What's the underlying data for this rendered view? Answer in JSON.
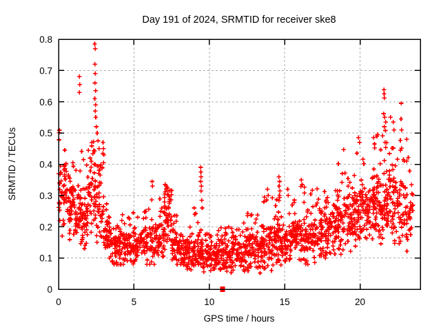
{
  "chart_data": {
    "type": "scatter",
    "title": "Day 191 of 2024, SRMTID for receiver ske8",
    "xlabel": "GPS time / hours",
    "ylabel": "SRMTID / TECUs",
    "xlim": [
      0,
      24
    ],
    "ylim": [
      0,
      0.8
    ],
    "xtick_values": [
      0,
      5,
      10,
      15,
      20
    ],
    "xtick_labels": [
      "0",
      "5",
      "10",
      "15",
      "20"
    ],
    "ytick_values": [
      0,
      0.1,
      0.2,
      0.3,
      0.4,
      0.5,
      0.6,
      0.7,
      0.8
    ],
    "ytick_labels": [
      "0",
      "0.1",
      "0.2",
      "0.3",
      "0.4",
      "0.5",
      "0.6",
      "0.7",
      "0.8"
    ],
    "grid": true,
    "legend": "none",
    "marker": "plus",
    "marker_color": "#ff0000",
    "grid_color": "#ababab",
    "border_color": "#000000",
    "approx_point_count": 2000,
    "seed": 191,
    "density_bands_format": [
      "hour_start",
      "hour_end",
      "count",
      "min",
      "max",
      "center",
      "spread"
    ],
    "density_bands": [
      [
        0.0,
        0.5,
        46,
        0.17,
        0.51,
        0.31,
        0.1
      ],
      [
        0.5,
        1.0,
        46,
        0.15,
        0.42,
        0.27,
        0.08
      ],
      [
        1.0,
        1.5,
        46,
        0.14,
        0.44,
        0.25,
        0.08
      ],
      [
        1.5,
        2.0,
        50,
        0.13,
        0.46,
        0.24,
        0.08
      ],
      [
        2.0,
        2.5,
        48,
        0.18,
        0.52,
        0.3,
        0.1
      ],
      [
        2.5,
        3.0,
        44,
        0.15,
        0.48,
        0.27,
        0.09
      ],
      [
        3.0,
        3.5,
        40,
        0.1,
        0.32,
        0.18,
        0.06
      ],
      [
        3.5,
        4.0,
        40,
        0.08,
        0.28,
        0.15,
        0.05
      ],
      [
        4.0,
        4.5,
        40,
        0.08,
        0.26,
        0.14,
        0.05
      ],
      [
        4.5,
        5.0,
        40,
        0.08,
        0.25,
        0.14,
        0.04
      ],
      [
        5.0,
        5.5,
        40,
        0.08,
        0.24,
        0.14,
        0.04
      ],
      [
        5.5,
        6.0,
        40,
        0.08,
        0.26,
        0.15,
        0.05
      ],
      [
        6.0,
        6.5,
        40,
        0.08,
        0.3,
        0.15,
        0.05
      ],
      [
        6.5,
        7.0,
        42,
        0.1,
        0.3,
        0.17,
        0.05
      ],
      [
        7.0,
        7.5,
        48,
        0.12,
        0.34,
        0.24,
        0.06
      ],
      [
        7.5,
        8.0,
        42,
        0.08,
        0.25,
        0.15,
        0.05
      ],
      [
        8.0,
        8.5,
        40,
        0.06,
        0.2,
        0.12,
        0.04
      ],
      [
        8.5,
        9.0,
        40,
        0.06,
        0.22,
        0.12,
        0.04
      ],
      [
        9.0,
        9.5,
        42,
        0.06,
        0.25,
        0.13,
        0.05
      ],
      [
        9.5,
        10.0,
        40,
        0.05,
        0.22,
        0.12,
        0.04
      ],
      [
        10.0,
        10.5,
        40,
        0.05,
        0.2,
        0.11,
        0.04
      ],
      [
        10.5,
        11.0,
        40,
        0.04,
        0.2,
        0.11,
        0.04
      ],
      [
        11.0,
        11.5,
        40,
        0.04,
        0.2,
        0.11,
        0.04
      ],
      [
        11.5,
        12.0,
        42,
        0.04,
        0.22,
        0.12,
        0.04
      ],
      [
        12.0,
        12.5,
        42,
        0.05,
        0.22,
        0.12,
        0.04
      ],
      [
        12.5,
        13.0,
        42,
        0.05,
        0.25,
        0.13,
        0.04
      ],
      [
        13.0,
        13.5,
        42,
        0.05,
        0.26,
        0.13,
        0.05
      ],
      [
        13.5,
        14.0,
        42,
        0.06,
        0.3,
        0.14,
        0.05
      ],
      [
        14.0,
        14.5,
        42,
        0.06,
        0.3,
        0.15,
        0.05
      ],
      [
        14.5,
        15.0,
        44,
        0.07,
        0.3,
        0.16,
        0.05
      ],
      [
        15.0,
        15.5,
        42,
        0.07,
        0.3,
        0.16,
        0.05
      ],
      [
        15.5,
        16.0,
        42,
        0.08,
        0.33,
        0.17,
        0.05
      ],
      [
        16.0,
        16.5,
        42,
        0.08,
        0.35,
        0.18,
        0.06
      ],
      [
        16.5,
        17.0,
        42,
        0.08,
        0.32,
        0.17,
        0.06
      ],
      [
        17.0,
        17.5,
        42,
        0.1,
        0.33,
        0.18,
        0.06
      ],
      [
        17.5,
        18.0,
        42,
        0.1,
        0.35,
        0.19,
        0.06
      ],
      [
        18.0,
        18.5,
        44,
        0.1,
        0.38,
        0.2,
        0.07
      ],
      [
        18.5,
        19.0,
        44,
        0.1,
        0.42,
        0.22,
        0.07
      ],
      [
        19.0,
        19.5,
        44,
        0.1,
        0.42,
        0.23,
        0.07
      ],
      [
        19.5,
        20.0,
        44,
        0.12,
        0.47,
        0.25,
        0.08
      ],
      [
        20.0,
        20.5,
        46,
        0.12,
        0.45,
        0.26,
        0.08
      ],
      [
        20.5,
        21.0,
        48,
        0.13,
        0.47,
        0.27,
        0.08
      ],
      [
        21.0,
        21.5,
        48,
        0.13,
        0.5,
        0.28,
        0.08
      ],
      [
        21.5,
        22.0,
        48,
        0.13,
        0.52,
        0.28,
        0.09
      ],
      [
        22.0,
        22.5,
        44,
        0.12,
        0.48,
        0.26,
        0.09
      ],
      [
        22.5,
        23.0,
        40,
        0.12,
        0.5,
        0.27,
        0.09
      ],
      [
        23.0,
        23.45,
        30,
        0.12,
        0.45,
        0.25,
        0.08
      ],
      [
        23.45,
        23.55,
        4,
        0.2,
        0.35,
        0.27,
        0.05
      ]
    ],
    "feature_points": [
      [
        1.38,
        0.68
      ],
      [
        1.41,
        0.655
      ],
      [
        1.39,
        0.63
      ],
      [
        2.4,
        0.785
      ],
      [
        2.43,
        0.77
      ],
      [
        2.41,
        0.72
      ],
      [
        2.44,
        0.69
      ],
      [
        2.42,
        0.66
      ],
      [
        2.45,
        0.635
      ],
      [
        2.4,
        0.61
      ],
      [
        2.46,
        0.59
      ],
      [
        2.43,
        0.57
      ],
      [
        2.47,
        0.55
      ],
      [
        2.5,
        0.52
      ],
      [
        2.56,
        0.5
      ],
      [
        2.62,
        0.475
      ],
      [
        2.68,
        0.45
      ],
      [
        2.95,
        0.47
      ],
      [
        2.98,
        0.45
      ],
      [
        3.01,
        0.43
      ],
      [
        6.2,
        0.345
      ],
      [
        6.23,
        0.33
      ],
      [
        7.08,
        0.335
      ],
      [
        7.14,
        0.33
      ],
      [
        7.2,
        0.325
      ],
      [
        7.26,
        0.315
      ],
      [
        7.05,
        0.305
      ],
      [
        7.31,
        0.3
      ],
      [
        9.0,
        0.26
      ],
      [
        9.03,
        0.24
      ],
      [
        9.42,
        0.39
      ],
      [
        9.44,
        0.375
      ],
      [
        9.46,
        0.36
      ],
      [
        9.43,
        0.345
      ],
      [
        9.47,
        0.33
      ],
      [
        9.45,
        0.315
      ],
      [
        9.5,
        0.285
      ],
      [
        9.53,
        0.26
      ],
      [
        13.86,
        0.32
      ],
      [
        13.9,
        0.3
      ],
      [
        14.62,
        0.36
      ],
      [
        14.66,
        0.345
      ],
      [
        14.63,
        0.33
      ],
      [
        14.68,
        0.315
      ],
      [
        14.65,
        0.3
      ],
      [
        15.2,
        0.32
      ],
      [
        15.24,
        0.3
      ],
      [
        16.1,
        0.35
      ],
      [
        16.16,
        0.335
      ],
      [
        18.92,
        0.447
      ],
      [
        19.9,
        0.485
      ],
      [
        19.96,
        0.47
      ],
      [
        20.9,
        0.485
      ],
      [
        20.96,
        0.465
      ],
      [
        21.12,
        0.49
      ],
      [
        21.58,
        0.639
      ],
      [
        21.6,
        0.625
      ],
      [
        21.62,
        0.612
      ],
      [
        21.56,
        0.562
      ],
      [
        21.64,
        0.55
      ],
      [
        21.7,
        0.535
      ],
      [
        21.61,
        0.52
      ],
      [
        21.68,
        0.508
      ],
      [
        22.02,
        0.55
      ],
      [
        22.2,
        0.535
      ],
      [
        22.26,
        0.51
      ],
      [
        22.74,
        0.595
      ],
      [
        22.72,
        0.545
      ],
      [
        22.76,
        0.51
      ],
      [
        23.1,
        0.48
      ]
    ],
    "zero_marker": {
      "x": 10.87,
      "y": 0,
      "shape": "filled-square",
      "color": "#ff0000"
    }
  }
}
